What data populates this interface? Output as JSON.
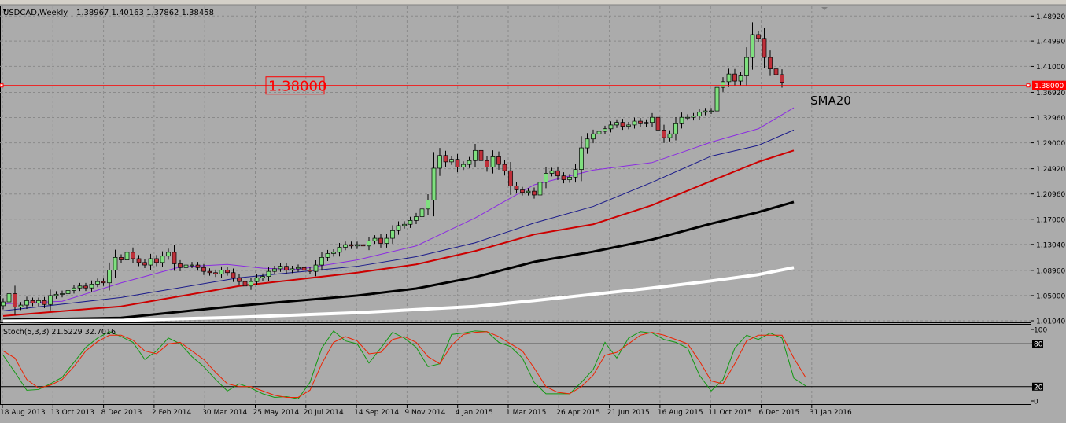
{
  "window": {
    "symbol_title": "USDCAD,Weekly",
    "ohlc": "1.38967 1.40163 1.37862 1.38458"
  },
  "hline": {
    "value": 1.38,
    "label": "1.38000",
    "axis_label": "1.38000",
    "color": "#ff0000"
  },
  "ma_annotation": "SMA20",
  "colors": {
    "background": "#ababab",
    "grid": "#8a8a8a",
    "bull_candle": "#7fe07f",
    "bear_candle": "#c0303a",
    "sma_purple": "#8b2be2",
    "sma_blue": "#1a1a8a",
    "sma_red": "#cc0000",
    "sma_black": "#000000",
    "sma_white": "#ffffff",
    "stoch_main": "#119911",
    "stoch_signal": "#ee2200"
  },
  "chart_data": [
    {
      "type": "candlestick",
      "title": "USDCAD,Weekly",
      "ylim": [
        1.0104,
        1.4982
      ],
      "y_ticks": [
        "1.48920",
        "1.44990",
        "1.41000",
        "1.36920",
        "1.32960",
        "1.29000",
        "1.24920",
        "1.20960",
        "1.17000",
        "1.13040",
        "1.08960",
        "1.05000",
        "1.01040"
      ],
      "x_ticks": [
        "18 Aug 2013",
        "13 Oct 2013",
        "8 Dec 2013",
        "2 Feb 2014",
        "30 Mar 2014",
        "25 May 2014",
        "20 Jul 2014",
        "14 Sep 2014",
        "9 Nov 2014",
        "4 Jan 2015",
        "1 Mar 2015",
        "26 Apr 2015",
        "21 Jun 2015",
        "16 Aug 2015",
        "11 Oct 2015",
        "6 Dec 2015",
        "31 Jan 2016"
      ],
      "candle_spacing_weeks": 1,
      "close": [
        1.04,
        1.053,
        1.032,
        1.035,
        1.042,
        1.038,
        1.042,
        1.036,
        1.05,
        1.052,
        1.053,
        1.058,
        1.062,
        1.065,
        1.062,
        1.068,
        1.072,
        1.07,
        1.09,
        1.11,
        1.106,
        1.118,
        1.108,
        1.102,
        1.098,
        1.108,
        1.102,
        1.112,
        1.118,
        1.1,
        1.094,
        1.098,
        1.098,
        1.094,
        1.088,
        1.086,
        1.084,
        1.09,
        1.086,
        1.078,
        1.072,
        1.065,
        1.072,
        1.078,
        1.08,
        1.088,
        1.092,
        1.096,
        1.09,
        1.092,
        1.094,
        1.09,
        1.088,
        1.098,
        1.11,
        1.116,
        1.118,
        1.126,
        1.13,
        1.128,
        1.13,
        1.128,
        1.136,
        1.14,
        1.132,
        1.14,
        1.152,
        1.16,
        1.162,
        1.168,
        1.174,
        1.186,
        1.2,
        1.25,
        1.27,
        1.26,
        1.264,
        1.252,
        1.256,
        1.262,
        1.278,
        1.262,
        1.252,
        1.268,
        1.256,
        1.246,
        1.222,
        1.216,
        1.212,
        1.214,
        1.208,
        1.228,
        1.242,
        1.246,
        1.238,
        1.232,
        1.236,
        1.248,
        1.282,
        1.296,
        1.304,
        1.308,
        1.312,
        1.318,
        1.322,
        1.316,
        1.318,
        1.324,
        1.32,
        1.322,
        1.33,
        1.31,
        1.298,
        1.304,
        1.32,
        1.33,
        1.33,
        1.332,
        1.338,
        1.34,
        1.34,
        1.377,
        1.386,
        1.398,
        1.387,
        1.395,
        1.424,
        1.46,
        1.454,
        1.424,
        1.406,
        1.397,
        1.385
      ],
      "series": [
        {
          "name": "SMA20",
          "color": "#8b2be2",
          "values": [
            [
              0,
              1.037
            ],
            [
              10,
              1.041
            ],
            [
              20,
              1.07
            ],
            [
              30,
              1.095
            ],
            [
              38,
              1.099
            ],
            [
              44,
              1.093
            ],
            [
              50,
              1.091
            ],
            [
              60,
              1.106
            ],
            [
              70,
              1.128
            ],
            [
              80,
              1.172
            ],
            [
              90,
              1.224
            ],
            [
              100,
              1.247
            ],
            [
              110,
              1.259
            ],
            [
              120,
              1.291
            ],
            [
              128,
              1.312
            ],
            [
              134,
              1.345
            ]
          ]
        },
        {
          "name": "",
          "color": "#1a1a8a",
          "values": [
            [
              0,
              1.026
            ],
            [
              20,
              1.047
            ],
            [
              40,
              1.078
            ],
            [
              60,
              1.096
            ],
            [
              70,
              1.111
            ],
            [
              80,
              1.133
            ],
            [
              90,
              1.164
            ],
            [
              100,
              1.19
            ],
            [
              110,
              1.228
            ],
            [
              120,
              1.269
            ],
            [
              128,
              1.286
            ],
            [
              134,
              1.31
            ]
          ]
        },
        {
          "name": "",
          "color": "#cc0000",
          "values": [
            [
              0,
              1.018
            ],
            [
              20,
              1.033
            ],
            [
              40,
              1.065
            ],
            [
              60,
              1.086
            ],
            [
              70,
              1.099
            ],
            [
              80,
              1.12
            ],
            [
              90,
              1.146
            ],
            [
              100,
              1.162
            ],
            [
              110,
              1.192
            ],
            [
              120,
              1.23
            ],
            [
              128,
              1.26
            ],
            [
              134,
              1.278
            ]
          ]
        },
        {
          "name": "",
          "color": "#000000",
          "values": [
            [
              0,
              1.012
            ],
            [
              20,
              1.015
            ],
            [
              40,
              1.034
            ],
            [
              60,
              1.05
            ],
            [
              70,
              1.061
            ],
            [
              80,
              1.079
            ],
            [
              90,
              1.103
            ],
            [
              100,
              1.119
            ],
            [
              110,
              1.138
            ],
            [
              120,
              1.163
            ],
            [
              128,
              1.181
            ],
            [
              134,
              1.197
            ]
          ]
        },
        {
          "name": "",
          "color": "#ffffff",
          "values": [
            [
              0,
              1.01
            ],
            [
              20,
              1.011
            ],
            [
              40,
              1.016
            ],
            [
              60,
              1.023
            ],
            [
              80,
              1.033
            ],
            [
              90,
              1.042
            ],
            [
              100,
              1.052
            ],
            [
              110,
              1.062
            ],
            [
              120,
              1.073
            ],
            [
              128,
              1.083
            ],
            [
              134,
              1.094
            ]
          ]
        }
      ]
    },
    {
      "type": "line",
      "title": "Stoch(5,3,3) 21.5229 32.7016",
      "ylim": [
        0,
        100
      ],
      "y_ticks": [
        "100",
        "80",
        "20",
        "0"
      ],
      "levels": [
        80,
        20
      ],
      "series": [
        {
          "name": "",
          "color": "#119911",
          "values": [
            [
              0,
              64
            ],
            [
              2,
              40
            ],
            [
              4,
              15
            ],
            [
              6,
              16
            ],
            [
              8,
              24
            ],
            [
              10,
              33
            ],
            [
              12,
              54
            ],
            [
              14,
              75
            ],
            [
              16,
              88
            ],
            [
              18,
              97
            ],
            [
              20,
              90
            ],
            [
              22,
              82
            ],
            [
              24,
              58
            ],
            [
              26,
              70
            ],
            [
              28,
              88
            ],
            [
              30,
              80
            ],
            [
              32,
              62
            ],
            [
              34,
              48
            ],
            [
              36,
              30
            ],
            [
              38,
              14
            ],
            [
              40,
              24
            ],
            [
              42,
              18
            ],
            [
              44,
              10
            ],
            [
              46,
              5
            ],
            [
              48,
              6
            ],
            [
              50,
              3
            ],
            [
              52,
              26
            ],
            [
              54,
              74
            ],
            [
              56,
              98
            ],
            [
              58,
              84
            ],
            [
              60,
              80
            ],
            [
              62,
              53
            ],
            [
              64,
              74
            ],
            [
              66,
              96
            ],
            [
              68,
              88
            ],
            [
              70,
              75
            ],
            [
              72,
              48
            ],
            [
              74,
              52
            ],
            [
              76,
              93
            ],
            [
              78,
              95
            ],
            [
              80,
              98
            ],
            [
              82,
              97
            ],
            [
              84,
              82
            ],
            [
              86,
              76
            ],
            [
              88,
              60
            ],
            [
              90,
              26
            ],
            [
              92,
              10
            ],
            [
              94,
              10
            ],
            [
              96,
              10
            ],
            [
              98,
              26
            ],
            [
              100,
              44
            ],
            [
              102,
              82
            ],
            [
              104,
              60
            ],
            [
              106,
              88
            ],
            [
              108,
              97
            ],
            [
              110,
              95
            ],
            [
              112,
              86
            ],
            [
              114,
              82
            ],
            [
              116,
              74
            ],
            [
              118,
              36
            ],
            [
              120,
              14
            ],
            [
              122,
              30
            ],
            [
              124,
              74
            ],
            [
              126,
              92
            ],
            [
              128,
              86
            ],
            [
              130,
              95
            ],
            [
              132,
              88
            ],
            [
              134,
              32
            ],
            [
              136,
              21
            ]
          ]
        },
        {
          "name": "",
          "color": "#ee2200",
          "values": [
            [
              0,
              70
            ],
            [
              2,
              60
            ],
            [
              4,
              30
            ],
            [
              6,
              18
            ],
            [
              8,
              22
            ],
            [
              10,
              30
            ],
            [
              12,
              48
            ],
            [
              14,
              70
            ],
            [
              16,
              83
            ],
            [
              18,
              92
            ],
            [
              20,
              92
            ],
            [
              22,
              85
            ],
            [
              24,
              70
            ],
            [
              26,
              66
            ],
            [
              28,
              80
            ],
            [
              30,
              82
            ],
            [
              32,
              70
            ],
            [
              34,
              58
            ],
            [
              36,
              40
            ],
            [
              38,
              24
            ],
            [
              40,
              20
            ],
            [
              42,
              20
            ],
            [
              44,
              14
            ],
            [
              46,
              8
            ],
            [
              48,
              5
            ],
            [
              50,
              5
            ],
            [
              52,
              15
            ],
            [
              54,
              52
            ],
            [
              56,
              82
            ],
            [
              58,
              90
            ],
            [
              60,
              84
            ],
            [
              62,
              66
            ],
            [
              64,
              68
            ],
            [
              66,
              86
            ],
            [
              68,
              90
            ],
            [
              70,
              82
            ],
            [
              72,
              62
            ],
            [
              74,
              52
            ],
            [
              76,
              78
            ],
            [
              78,
              93
            ],
            [
              80,
              96
            ],
            [
              82,
              97
            ],
            [
              84,
              90
            ],
            [
              86,
              80
            ],
            [
              88,
              70
            ],
            [
              90,
              46
            ],
            [
              92,
              20
            ],
            [
              94,
              12
            ],
            [
              96,
              10
            ],
            [
              98,
              20
            ],
            [
              100,
              36
            ],
            [
              102,
              64
            ],
            [
              104,
              68
            ],
            [
              106,
              80
            ],
            [
              108,
              92
            ],
            [
              110,
              96
            ],
            [
              112,
              92
            ],
            [
              114,
              86
            ],
            [
              116,
              80
            ],
            [
              118,
              56
            ],
            [
              120,
              28
            ],
            [
              122,
              24
            ],
            [
              124,
              52
            ],
            [
              126,
              84
            ],
            [
              128,
              92
            ],
            [
              130,
              92
            ],
            [
              132,
              92
            ],
            [
              134,
              60
            ],
            [
              136,
              33
            ]
          ]
        }
      ]
    }
  ]
}
